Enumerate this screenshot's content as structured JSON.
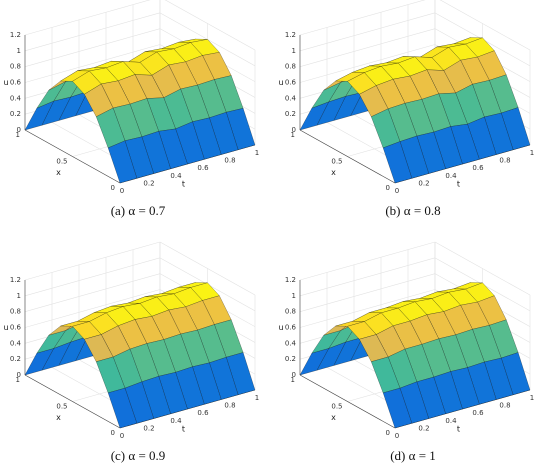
{
  "chart_data": [
    {
      "type": "surface",
      "caption": "(a) α = 0.7",
      "xlabel": "x",
      "ylabel": "t",
      "zlabel": "u",
      "colormap": "parula",
      "grid": true,
      "x": [
        0,
        0.125,
        0.25,
        0.375,
        0.5,
        0.625,
        0.75,
        0.875,
        1
      ],
      "y": [
        0,
        0.125,
        0.25,
        0.375,
        0.5,
        0.625,
        0.75,
        0.875,
        1
      ],
      "z": [
        [
          0,
          0.36,
          0.67,
          0.87,
          0.95,
          0.87,
          0.67,
          0.36,
          0
        ],
        [
          0,
          0.39,
          0.72,
          0.94,
          1.02,
          0.94,
          0.72,
          0.39,
          0
        ],
        [
          0,
          0.38,
          0.71,
          0.92,
          1,
          0.92,
          0.71,
          0.38,
          0
        ],
        [
          0,
          0.39,
          0.72,
          0.94,
          1.02,
          0.94,
          0.72,
          0.39,
          0
        ],
        [
          0,
          0.36,
          0.67,
          0.87,
          0.95,
          0.87,
          0.67,
          0.36,
          0
        ],
        [
          0,
          0.39,
          0.72,
          0.94,
          1.02,
          0.94,
          0.72,
          0.39,
          0
        ],
        [
          0,
          0.38,
          0.71,
          0.92,
          1,
          0.92,
          0.71,
          0.38,
          0
        ],
        [
          0,
          0.39,
          0.72,
          0.94,
          1.02,
          0.94,
          0.72,
          0.39,
          0
        ],
        [
          0,
          0.38,
          0.71,
          0.92,
          1,
          0.92,
          0.71,
          0.38,
          0
        ]
      ],
      "xlim": [
        0,
        1
      ],
      "ylim": [
        0,
        1
      ],
      "zlim": [
        0,
        1.2
      ],
      "xticks": [
        0,
        0.5,
        1
      ],
      "yticks": [
        0,
        0.2,
        0.4,
        0.6,
        0.8,
        1
      ],
      "zticks": [
        0,
        0.2,
        0.4,
        0.6,
        0.8,
        1,
        1.2
      ]
    },
    {
      "type": "surface",
      "caption": "(b) α = 0.8",
      "xlabel": "x",
      "ylabel": "t",
      "zlabel": "u",
      "colormap": "parula",
      "grid": true,
      "x": [
        0,
        0.125,
        0.25,
        0.375,
        0.5,
        0.625,
        0.75,
        0.875,
        1
      ],
      "y": [
        0,
        0.125,
        0.25,
        0.375,
        0.5,
        0.625,
        0.75,
        0.875,
        1
      ],
      "z": [
        [
          0,
          0.36,
          0.67,
          0.87,
          0.95,
          0.87,
          0.67,
          0.36,
          0
        ],
        [
          0,
          0.38,
          0.71,
          0.92,
          1,
          0.92,
          0.71,
          0.38,
          0
        ],
        [
          0,
          0.39,
          0.72,
          0.94,
          1.02,
          0.94,
          0.72,
          0.39,
          0
        ],
        [
          0,
          0.38,
          0.71,
          0.92,
          1,
          0.92,
          0.71,
          0.38,
          0
        ],
        [
          0,
          0.39,
          0.72,
          0.94,
          1.02,
          0.94,
          0.72,
          0.39,
          0
        ],
        [
          0,
          0.36,
          0.67,
          0.87,
          0.95,
          0.87,
          0.67,
          0.36,
          0
        ],
        [
          0,
          0.39,
          0.72,
          0.94,
          1.02,
          0.94,
          0.72,
          0.39,
          0
        ],
        [
          0,
          0.38,
          0.71,
          0.92,
          1,
          0.92,
          0.71,
          0.38,
          0
        ],
        [
          0,
          0.39,
          0.72,
          0.94,
          1.02,
          0.94,
          0.72,
          0.39,
          0
        ]
      ],
      "xlim": [
        0,
        1
      ],
      "ylim": [
        0,
        1
      ],
      "zlim": [
        0,
        1.2
      ],
      "xticks": [
        0,
        0.5,
        1
      ],
      "yticks": [
        0,
        0.2,
        0.4,
        0.6,
        0.8,
        1
      ],
      "zticks": [
        0,
        0.2,
        0.4,
        0.6,
        0.8,
        1,
        1.2
      ]
    },
    {
      "type": "surface",
      "caption": "(c) α = 0.9",
      "xlabel": "x",
      "ylabel": "t",
      "zlabel": "u",
      "colormap": "parula",
      "grid": true,
      "x": [
        0,
        0.125,
        0.25,
        0.375,
        0.5,
        0.625,
        0.75,
        0.875,
        1
      ],
      "y": [
        0,
        0.125,
        0.25,
        0.375,
        0.5,
        0.625,
        0.75,
        0.875,
        1
      ],
      "z": [
        [
          0,
          0.36,
          0.67,
          0.87,
          0.95,
          0.87,
          0.67,
          0.36,
          0
        ],
        [
          0,
          0.36,
          0.67,
          0.87,
          0.95,
          0.87,
          0.67,
          0.36,
          0
        ],
        [
          0,
          0.38,
          0.71,
          0.92,
          1,
          0.92,
          0.71,
          0.38,
          0
        ],
        [
          0,
          0.39,
          0.72,
          0.94,
          1.02,
          0.94,
          0.72,
          0.39,
          0
        ],
        [
          0,
          0.38,
          0.71,
          0.92,
          1,
          0.92,
          0.71,
          0.38,
          0
        ],
        [
          0,
          0.39,
          0.72,
          0.94,
          1.02,
          0.94,
          0.72,
          0.39,
          0
        ],
        [
          0,
          0.38,
          0.71,
          0.92,
          1,
          0.92,
          0.71,
          0.38,
          0
        ],
        [
          0,
          0.39,
          0.72,
          0.94,
          1.02,
          0.94,
          0.72,
          0.39,
          0
        ],
        [
          0,
          0.39,
          0.72,
          0.94,
          1.02,
          0.94,
          0.72,
          0.39,
          0
        ]
      ],
      "xlim": [
        0,
        1
      ],
      "ylim": [
        0,
        1
      ],
      "zlim": [
        0,
        1.2
      ],
      "xticks": [
        0,
        0.5,
        1
      ],
      "yticks": [
        0,
        0.2,
        0.4,
        0.6,
        0.8,
        1
      ],
      "zticks": [
        0,
        0.2,
        0.4,
        0.6,
        0.8,
        1,
        1.2
      ]
    },
    {
      "type": "surface",
      "caption": "(d) α = 1",
      "xlabel": "x",
      "ylabel": "t",
      "zlabel": "u",
      "colormap": "parula",
      "grid": true,
      "x": [
        0,
        0.125,
        0.25,
        0.375,
        0.5,
        0.625,
        0.75,
        0.875,
        1
      ],
      "y": [
        0,
        0.125,
        0.25,
        0.375,
        0.5,
        0.625,
        0.75,
        0.875,
        1
      ],
      "z": [
        [
          0,
          0.36,
          0.67,
          0.87,
          0.95,
          0.87,
          0.67,
          0.36,
          0
        ],
        [
          0,
          0.36,
          0.67,
          0.87,
          0.95,
          0.87,
          0.67,
          0.36,
          0
        ],
        [
          0,
          0.38,
          0.71,
          0.92,
          1,
          0.92,
          0.71,
          0.38,
          0
        ],
        [
          0,
          0.38,
          0.71,
          0.92,
          1,
          0.92,
          0.71,
          0.38,
          0
        ],
        [
          0,
          0.39,
          0.72,
          0.94,
          1.02,
          0.94,
          0.72,
          0.39,
          0
        ],
        [
          0,
          0.38,
          0.71,
          0.92,
          1,
          0.92,
          0.71,
          0.38,
          0
        ],
        [
          0,
          0.39,
          0.72,
          0.94,
          1.02,
          0.94,
          0.72,
          0.39,
          0
        ],
        [
          0,
          0.38,
          0.71,
          0.92,
          1,
          0.92,
          0.71,
          0.38,
          0
        ],
        [
          0,
          0.39,
          0.72,
          0.94,
          1.02,
          0.94,
          0.72,
          0.39,
          0
        ]
      ],
      "xlim": [
        0,
        1
      ],
      "ylim": [
        0,
        1
      ],
      "zlim": [
        0,
        1.2
      ],
      "xticks": [
        0,
        0.5,
        1
      ],
      "yticks": [
        0,
        0.2,
        0.4,
        0.6,
        0.8,
        1
      ],
      "zticks": [
        0,
        0.2,
        0.4,
        0.6,
        0.8,
        1,
        1.2
      ]
    }
  ]
}
